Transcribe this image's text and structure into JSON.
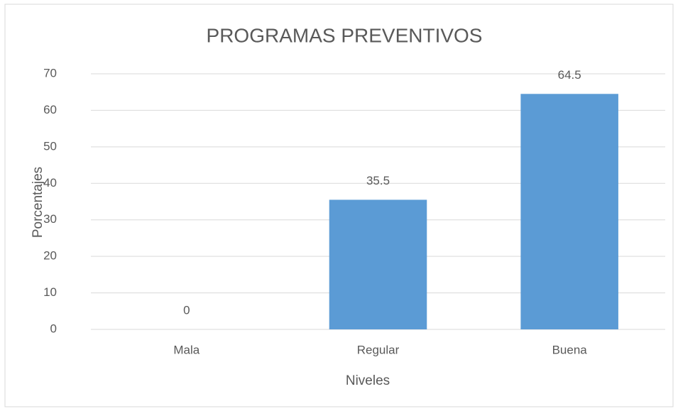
{
  "chart_data": {
    "type": "bar",
    "title": "PROGRAMAS PREVENTIVOS",
    "x_label": "Niveles",
    "y_label": "Porcentajes",
    "categories": [
      "Mala",
      "Regular",
      "Buena"
    ],
    "values": [
      0,
      35.5,
      64.5
    ],
    "color": "#5b9bd5",
    "ylim": [
      0,
      70
    ],
    "yticks": [
      0,
      10,
      20,
      30,
      40,
      50,
      60,
      70
    ],
    "grid": true
  }
}
